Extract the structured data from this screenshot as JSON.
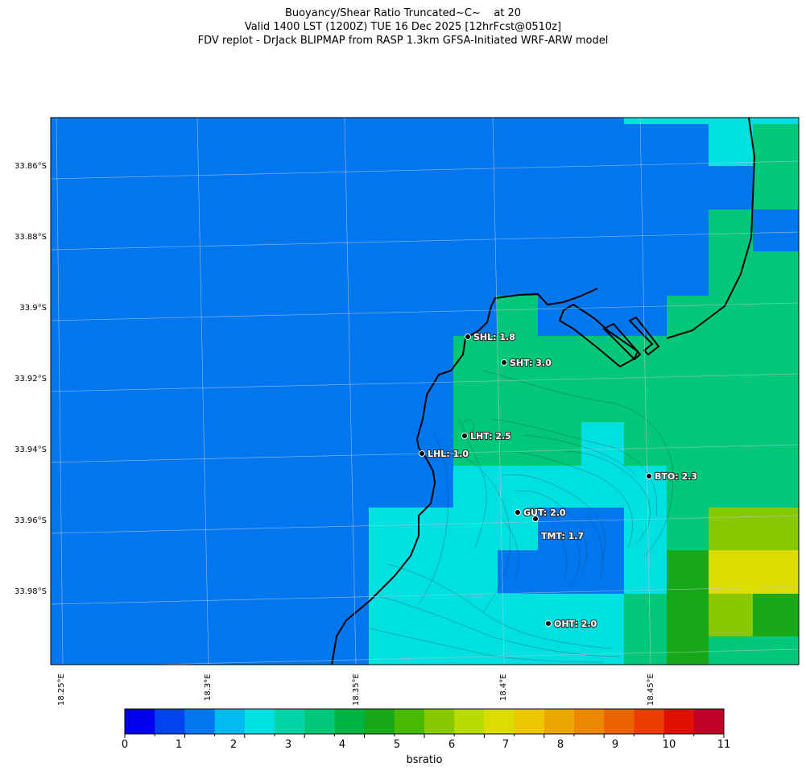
{
  "title": {
    "line1": "Buoyancy/Shear Ratio Truncated~C~    at 20",
    "line2": "Valid 1400 LST (1200Z) TUE 16 Dec 2025 [12hrFcst@0510z]",
    "line3": "FDV replot - DrJack BLIPMAP from RASP 1.3km GFSA-Initiated WRF-ARW model"
  },
  "axes": {
    "lat_ticks": [
      "33.86°S",
      "33.88°S",
      "33.9°S",
      "33.92°S",
      "33.94°S",
      "33.96°S",
      "33.98°S"
    ],
    "lon_ticks": [
      "18.25°E",
      "18.3°E",
      "18.35°E",
      "18.4°E",
      "18.45°E"
    ]
  },
  "colorbar": {
    "label": "bsratio",
    "ticks": [
      "0",
      "1",
      "2",
      "3",
      "4",
      "5",
      "6",
      "7",
      "8",
      "9",
      "10",
      "11"
    ],
    "colors": [
      "#0000ee",
      "#0044ee",
      "#0077ee",
      "#00bbee",
      "#00e0e0",
      "#00d4a8",
      "#00c878",
      "#00b444",
      "#18a818",
      "#48b800",
      "#88c800",
      "#b8dc00",
      "#dcdc00",
      "#ecc800",
      "#eca800",
      "#ec8800",
      "#ec6400",
      "#ec3c00",
      "#e01000",
      "#c00028"
    ]
  },
  "stations": [
    {
      "code": "SHL",
      "label": "SHL: 1.8",
      "value": 1.8
    },
    {
      "code": "SHT",
      "label": "SHT: 3.0",
      "value": 3.0
    },
    {
      "code": "LHT",
      "label": "LHT: 2.5",
      "value": 2.5
    },
    {
      "code": "LHL",
      "label": "LHL: 1.0",
      "value": 1.0
    },
    {
      "code": "BTO",
      "label": "BTO: 2.3",
      "value": 2.3
    },
    {
      "code": "GUT",
      "label": "GUT: 2.0",
      "value": 2.0
    },
    {
      "code": "TMT",
      "label": "TMT: 1.7",
      "value": 1.7
    },
    {
      "code": "OHT",
      "label": "OHT: 2.0",
      "value": 2.0
    }
  ]
}
